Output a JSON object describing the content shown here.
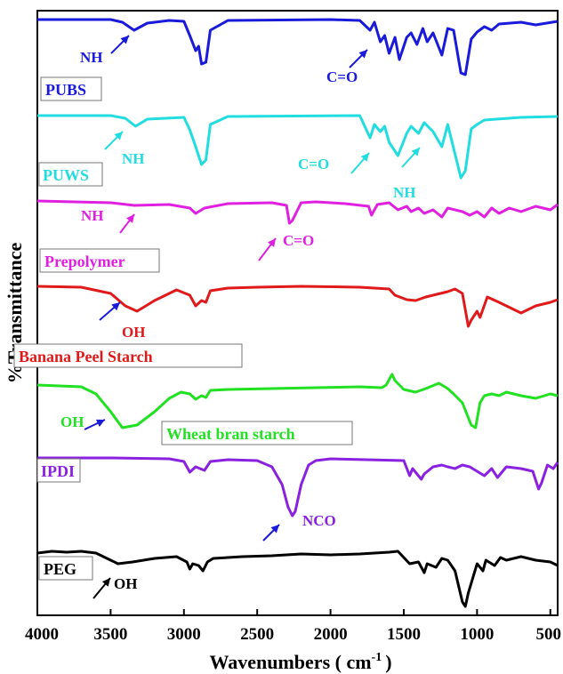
{
  "chart_data": {
    "type": "line",
    "xlabel": "Wavenumbers ( cm",
    "xlabel_sup": "-1",
    "xlabel_close": ")",
    "ylabel": "%Transmittance",
    "xlim": [
      4000,
      450
    ],
    "x_reversed": true,
    "x_ticks": [
      4000,
      3500,
      3000,
      2500,
      2000,
      1500,
      1000,
      500
    ],
    "x_tick_labels": [
      "4000",
      "3500",
      "3000",
      "2500",
      "2000",
      "1500",
      "1000",
      "500"
    ],
    "y_ticks_shown": false,
    "grid": false,
    "series": [
      {
        "name": "PUBS",
        "color": "#1a1adb",
        "offset": 0,
        "points": [
          [
            4000,
            0
          ],
          [
            3500,
            0
          ],
          [
            3420,
            -3
          ],
          [
            3340,
            -12
          ],
          [
            3250,
            -4
          ],
          [
            3100,
            -1
          ],
          [
            3000,
            -2
          ],
          [
            2960,
            -18
          ],
          [
            2920,
            -35
          ],
          [
            2900,
            -30
          ],
          [
            2880,
            -50
          ],
          [
            2850,
            -48
          ],
          [
            2820,
            -12
          ],
          [
            2700,
            -1
          ],
          [
            2000,
            0
          ],
          [
            1800,
            -1
          ],
          [
            1730,
            -12
          ],
          [
            1700,
            -3
          ],
          [
            1660,
            -25
          ],
          [
            1630,
            -18
          ],
          [
            1600,
            -38
          ],
          [
            1560,
            -20
          ],
          [
            1530,
            -45
          ],
          [
            1480,
            -20
          ],
          [
            1450,
            -15
          ],
          [
            1410,
            -28
          ],
          [
            1370,
            -10
          ],
          [
            1340,
            -25
          ],
          [
            1300,
            -15
          ],
          [
            1240,
            -40
          ],
          [
            1200,
            -10
          ],
          [
            1160,
            -12
          ],
          [
            1110,
            -60
          ],
          [
            1080,
            -62
          ],
          [
            1040,
            -22
          ],
          [
            1000,
            -14
          ],
          [
            950,
            -8
          ],
          [
            900,
            -12
          ],
          [
            850,
            -5
          ],
          [
            700,
            -3
          ],
          [
            600,
            -6
          ],
          [
            450,
            -2
          ]
        ]
      },
      {
        "name": "PUWS",
        "color": "#22dde0",
        "offset": 0,
        "points": [
          [
            4000,
            0
          ],
          [
            3500,
            0
          ],
          [
            3400,
            -3
          ],
          [
            3330,
            -12
          ],
          [
            3250,
            -4
          ],
          [
            3000,
            -2
          ],
          [
            2960,
            -16
          ],
          [
            2920,
            -35
          ],
          [
            2880,
            -55
          ],
          [
            2850,
            -50
          ],
          [
            2820,
            -10
          ],
          [
            2700,
            -1
          ],
          [
            1800,
            0
          ],
          [
            1730,
            -25
          ],
          [
            1700,
            -10
          ],
          [
            1660,
            -18
          ],
          [
            1630,
            -12
          ],
          [
            1600,
            -30
          ],
          [
            1540,
            -45
          ],
          [
            1480,
            -20
          ],
          [
            1450,
            -12
          ],
          [
            1400,
            -20
          ],
          [
            1360,
            -8
          ],
          [
            1300,
            -18
          ],
          [
            1240,
            -35
          ],
          [
            1200,
            -10
          ],
          [
            1110,
            -70
          ],
          [
            1080,
            -62
          ],
          [
            1040,
            -15
          ],
          [
            1000,
            -10
          ],
          [
            950,
            -5
          ],
          [
            700,
            -2
          ],
          [
            450,
            -1
          ]
        ]
      },
      {
        "name": "Prepolymer",
        "color": "#e020e0",
        "offset": 0,
        "points": [
          [
            4000,
            0
          ],
          [
            3500,
            -2
          ],
          [
            3340,
            -5
          ],
          [
            3100,
            -4
          ],
          [
            2960,
            -8
          ],
          [
            2920,
            -14
          ],
          [
            2860,
            -8
          ],
          [
            2700,
            -3
          ],
          [
            2400,
            -2
          ],
          [
            2300,
            -5
          ],
          [
            2280,
            -25
          ],
          [
            2260,
            -22
          ],
          [
            2200,
            -2
          ],
          [
            2100,
            -1
          ],
          [
            1900,
            -3
          ],
          [
            1740,
            -6
          ],
          [
            1720,
            -16
          ],
          [
            1680,
            -4
          ],
          [
            1600,
            -2
          ],
          [
            1540,
            -10
          ],
          [
            1480,
            -6
          ],
          [
            1450,
            -12
          ],
          [
            1400,
            -8
          ],
          [
            1360,
            -14
          ],
          [
            1300,
            -10
          ],
          [
            1240,
            -18
          ],
          [
            1200,
            -8
          ],
          [
            1100,
            -12
          ],
          [
            1050,
            -16
          ],
          [
            1000,
            -12
          ],
          [
            950,
            -18
          ],
          [
            900,
            -8
          ],
          [
            850,
            -14
          ],
          [
            780,
            -8
          ],
          [
            700,
            -12
          ],
          [
            600,
            -6
          ],
          [
            500,
            -10
          ],
          [
            450,
            -4
          ]
        ]
      },
      {
        "name": "Banana Peel Starch",
        "color": "#e01a1a",
        "offset": 0,
        "points": [
          [
            4000,
            0
          ],
          [
            3700,
            -1
          ],
          [
            3500,
            -8
          ],
          [
            3400,
            -22
          ],
          [
            3320,
            -28
          ],
          [
            3200,
            -16
          ],
          [
            3050,
            -4
          ],
          [
            2960,
            -10
          ],
          [
            2920,
            -22
          ],
          [
            2880,
            -16
          ],
          [
            2850,
            -18
          ],
          [
            2820,
            -5
          ],
          [
            2700,
            -2
          ],
          [
            2500,
            -1
          ],
          [
            2200,
            0
          ],
          [
            1800,
            -1
          ],
          [
            1600,
            -3
          ],
          [
            1560,
            -10
          ],
          [
            1480,
            -15
          ],
          [
            1420,
            -16
          ],
          [
            1350,
            -12
          ],
          [
            1200,
            -6
          ],
          [
            1150,
            -3
          ],
          [
            1100,
            -8
          ],
          [
            1060,
            -45
          ],
          [
            1040,
            -38
          ],
          [
            1000,
            -28
          ],
          [
            980,
            -35
          ],
          [
            930,
            -12
          ],
          [
            850,
            -18
          ],
          [
            800,
            -22
          ],
          [
            700,
            -30
          ],
          [
            600,
            -22
          ],
          [
            500,
            -18
          ],
          [
            450,
            -15
          ]
        ]
      },
      {
        "name": "Wheat bran starch",
        "color": "#22e022",
        "offset": 0,
        "points": [
          [
            4000,
            0
          ],
          [
            3700,
            -2
          ],
          [
            3600,
            -10
          ],
          [
            3500,
            -30
          ],
          [
            3420,
            -48
          ],
          [
            3320,
            -45
          ],
          [
            3200,
            -30
          ],
          [
            3100,
            -15
          ],
          [
            3020,
            -8
          ],
          [
            2960,
            -10
          ],
          [
            2920,
            -16
          ],
          [
            2880,
            -12
          ],
          [
            2850,
            -14
          ],
          [
            2820,
            -6
          ],
          [
            2700,
            -5
          ],
          [
            2400,
            -4
          ],
          [
            2100,
            -3
          ],
          [
            1800,
            -2
          ],
          [
            1650,
            -3
          ],
          [
            1620,
            0
          ],
          [
            1580,
            12
          ],
          [
            1560,
            5
          ],
          [
            1500,
            -5
          ],
          [
            1420,
            -8
          ],
          [
            1350,
            -4
          ],
          [
            1260,
            2
          ],
          [
            1200,
            -4
          ],
          [
            1160,
            -10
          ],
          [
            1100,
            -20
          ],
          [
            1040,
            -45
          ],
          [
            1010,
            -48
          ],
          [
            980,
            -20
          ],
          [
            950,
            -12
          ],
          [
            900,
            -10
          ],
          [
            850,
            -12
          ],
          [
            800,
            -8
          ],
          [
            700,
            -12
          ],
          [
            600,
            -15
          ],
          [
            500,
            -10
          ],
          [
            450,
            -12
          ]
        ]
      },
      {
        "name": "IPDI",
        "color": "#8a20e0",
        "offset": 0,
        "points": [
          [
            4000,
            0
          ],
          [
            3500,
            0
          ],
          [
            3100,
            -1
          ],
          [
            3000,
            -4
          ],
          [
            2960,
            -16
          ],
          [
            2920,
            -10
          ],
          [
            2860,
            -14
          ],
          [
            2820,
            -4
          ],
          [
            2700,
            -2
          ],
          [
            2500,
            -3
          ],
          [
            2400,
            -10
          ],
          [
            2330,
            -30
          ],
          [
            2290,
            -55
          ],
          [
            2260,
            -65
          ],
          [
            2240,
            -60
          ],
          [
            2200,
            -30
          ],
          [
            2150,
            -8
          ],
          [
            2100,
            -3
          ],
          [
            2000,
            -1
          ],
          [
            1500,
            -3
          ],
          [
            1460,
            -20
          ],
          [
            1440,
            -12
          ],
          [
            1380,
            -24
          ],
          [
            1360,
            -18
          ],
          [
            1300,
            -10
          ],
          [
            1240,
            -8
          ],
          [
            1200,
            -10
          ],
          [
            1150,
            -12
          ],
          [
            1100,
            -8
          ],
          [
            1050,
            -10
          ],
          [
            950,
            -20
          ],
          [
            900,
            -12
          ],
          [
            860,
            -22
          ],
          [
            800,
            -10
          ],
          [
            700,
            -12
          ],
          [
            620,
            -15
          ],
          [
            580,
            -35
          ],
          [
            560,
            -28
          ],
          [
            520,
            -8
          ],
          [
            480,
            -12
          ],
          [
            450,
            -5
          ]
        ]
      },
      {
        "name": "PEG",
        "color": "#000000",
        "offset": 0,
        "points": [
          [
            4000,
            0
          ],
          [
            3900,
            2
          ],
          [
            3800,
            1
          ],
          [
            3700,
            2
          ],
          [
            3600,
            0
          ],
          [
            3500,
            -8
          ],
          [
            3450,
            -12
          ],
          [
            3350,
            -10
          ],
          [
            3200,
            -6
          ],
          [
            3050,
            -4
          ],
          [
            2980,
            -10
          ],
          [
            2960,
            -18
          ],
          [
            2940,
            -12
          ],
          [
            2900,
            -14
          ],
          [
            2870,
            -20
          ],
          [
            2840,
            -10
          ],
          [
            2800,
            -6
          ],
          [
            2600,
            -4
          ],
          [
            2400,
            -3
          ],
          [
            2200,
            -1
          ],
          [
            2000,
            -2
          ],
          [
            1800,
            -1
          ],
          [
            1600,
            1
          ],
          [
            1540,
            2
          ],
          [
            1500,
            -5
          ],
          [
            1460,
            -12
          ],
          [
            1400,
            -10
          ],
          [
            1360,
            -22
          ],
          [
            1340,
            -12
          ],
          [
            1280,
            -16
          ],
          [
            1240,
            -6
          ],
          [
            1200,
            -8
          ],
          [
            1150,
            -20
          ],
          [
            1100,
            -55
          ],
          [
            1080,
            -60
          ],
          [
            1060,
            -45
          ],
          [
            1000,
            -12
          ],
          [
            960,
            -20
          ],
          [
            940,
            -8
          ],
          [
            880,
            -14
          ],
          [
            840,
            -5
          ],
          [
            800,
            -8
          ],
          [
            700,
            -4
          ],
          [
            600,
            -8
          ],
          [
            500,
            -10
          ],
          [
            450,
            -14
          ]
        ]
      }
    ],
    "labels": [
      {
        "text": "PUBS",
        "color": "#1a1adb"
      },
      {
        "text": "PUWS",
        "color": "#22dde0"
      },
      {
        "text": "Prepolymer",
        "color": "#e020e0"
      },
      {
        "text": "Banana Peel Starch",
        "color": "#e01a1a"
      },
      {
        "text": "Wheat bran starch",
        "color": "#22e022"
      },
      {
        "text": "IPDI",
        "color": "#8a20e0"
      },
      {
        "text": "PEG",
        "color": "#000000"
      }
    ],
    "annotations": [
      {
        "text": "NH",
        "color": "#1a1adb"
      },
      {
        "text": "C=O",
        "color": "#1a1adb"
      },
      {
        "text": "NH",
        "color": "#22dde0"
      },
      {
        "text": "C=O",
        "color": "#22dde0"
      },
      {
        "text": "NH",
        "color": "#22dde0"
      },
      {
        "text": "NH",
        "color": "#e020e0"
      },
      {
        "text": "C=O",
        "color": "#e020e0"
      },
      {
        "text": "OH",
        "color": "#e01a1a"
      },
      {
        "text": "OH",
        "color": "#22e022"
      },
      {
        "text": "NCO",
        "color": "#8a20e0"
      },
      {
        "text": "OH",
        "color": "#000000"
      }
    ]
  }
}
